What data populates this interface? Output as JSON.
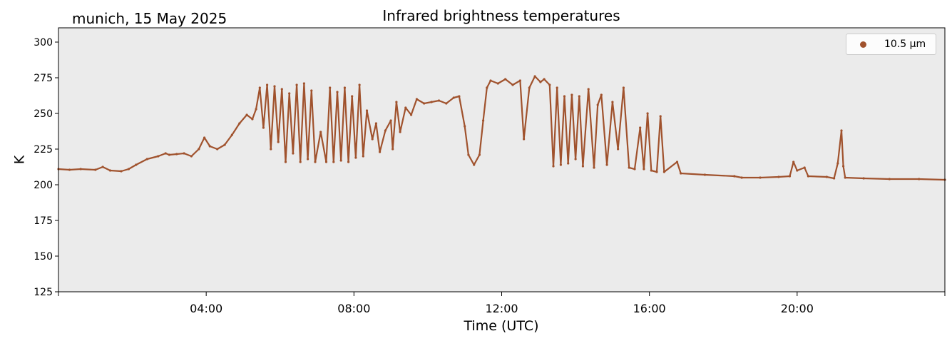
{
  "header": {
    "location_date": "munich, 15 May 2025"
  },
  "colors": {
    "series": "#a0522d",
    "plot_background": "#ebebeb"
  },
  "chart_data": {
    "type": "scatter",
    "title": "Infrared brightness temperatures",
    "xlabel": "Time (UTC)",
    "ylabel": "K",
    "xlim": [
      0,
      24
    ],
    "ylim": [
      125,
      310
    ],
    "x_ticks": [
      4,
      8,
      12,
      16,
      20
    ],
    "x_tick_labels": [
      "04:00",
      "08:00",
      "12:00",
      "16:00",
      "20:00"
    ],
    "y_ticks": [
      125,
      150,
      175,
      200,
      225,
      250,
      275,
      300
    ],
    "grid": false,
    "legend_position": "top-right",
    "series": [
      {
        "name": "10.5 µm",
        "marker": "dot",
        "points": [
          [
            0.0,
            211
          ],
          [
            0.3,
            210.5
          ],
          [
            0.6,
            211
          ],
          [
            1.0,
            210.5
          ],
          [
            1.2,
            212.5
          ],
          [
            1.4,
            210
          ],
          [
            1.7,
            209.5
          ],
          [
            1.9,
            211
          ],
          [
            2.1,
            214
          ],
          [
            2.4,
            218
          ],
          [
            2.7,
            220
          ],
          [
            2.9,
            222
          ],
          [
            3.0,
            221
          ],
          [
            3.2,
            221.5
          ],
          [
            3.4,
            222
          ],
          [
            3.6,
            220
          ],
          [
            3.8,
            225
          ],
          [
            3.95,
            233
          ],
          [
            4.1,
            227
          ],
          [
            4.3,
            225
          ],
          [
            4.5,
            228
          ],
          [
            4.7,
            235
          ],
          [
            4.9,
            243
          ],
          [
            5.1,
            249
          ],
          [
            5.25,
            246
          ],
          [
            5.35,
            253
          ],
          [
            5.45,
            268
          ],
          [
            5.55,
            240
          ],
          [
            5.65,
            270
          ],
          [
            5.75,
            225
          ],
          [
            5.85,
            269
          ],
          [
            5.95,
            230
          ],
          [
            6.05,
            267
          ],
          [
            6.15,
            216
          ],
          [
            6.25,
            264
          ],
          [
            6.35,
            222
          ],
          [
            6.45,
            270
          ],
          [
            6.55,
            216
          ],
          [
            6.65,
            271
          ],
          [
            6.75,
            218
          ],
          [
            6.85,
            266
          ],
          [
            6.95,
            216
          ],
          [
            7.1,
            237
          ],
          [
            7.25,
            216
          ],
          [
            7.35,
            268
          ],
          [
            7.45,
            216
          ],
          [
            7.55,
            265
          ],
          [
            7.65,
            217
          ],
          [
            7.75,
            268
          ],
          [
            7.85,
            216
          ],
          [
            7.95,
            262
          ],
          [
            8.05,
            219
          ],
          [
            8.15,
            270
          ],
          [
            8.25,
            220
          ],
          [
            8.35,
            252
          ],
          [
            8.5,
            232
          ],
          [
            8.6,
            243
          ],
          [
            8.7,
            223
          ],
          [
            8.85,
            238
          ],
          [
            9.0,
            245
          ],
          [
            9.05,
            225
          ],
          [
            9.15,
            258
          ],
          [
            9.25,
            237
          ],
          [
            9.4,
            254
          ],
          [
            9.55,
            249
          ],
          [
            9.7,
            260
          ],
          [
            9.9,
            257
          ],
          [
            10.1,
            258
          ],
          [
            10.3,
            259
          ],
          [
            10.5,
            257
          ],
          [
            10.7,
            261
          ],
          [
            10.85,
            262
          ],
          [
            11.0,
            241
          ],
          [
            11.1,
            221
          ],
          [
            11.25,
            214
          ],
          [
            11.4,
            221
          ],
          [
            11.5,
            245
          ],
          [
            11.6,
            268
          ],
          [
            11.7,
            273
          ],
          [
            11.9,
            271
          ],
          [
            12.1,
            274
          ],
          [
            12.3,
            270
          ],
          [
            12.5,
            273
          ],
          [
            12.6,
            232
          ],
          [
            12.75,
            268
          ],
          [
            12.9,
            276
          ],
          [
            13.05,
            272
          ],
          [
            13.15,
            274
          ],
          [
            13.3,
            270
          ],
          [
            13.4,
            213
          ],
          [
            13.5,
            268
          ],
          [
            13.6,
            214
          ],
          [
            13.7,
            262
          ],
          [
            13.8,
            215
          ],
          [
            13.9,
            263
          ],
          [
            14.0,
            218
          ],
          [
            14.1,
            262
          ],
          [
            14.2,
            213
          ],
          [
            14.35,
            267
          ],
          [
            14.5,
            212
          ],
          [
            14.6,
            256
          ],
          [
            14.7,
            263
          ],
          [
            14.85,
            214
          ],
          [
            15.0,
            258
          ],
          [
            15.15,
            225
          ],
          [
            15.3,
            268
          ],
          [
            15.45,
            212
          ],
          [
            15.6,
            211
          ],
          [
            15.75,
            240
          ],
          [
            15.85,
            211
          ],
          [
            15.95,
            250
          ],
          [
            16.05,
            210
          ],
          [
            16.2,
            209
          ],
          [
            16.3,
            248
          ],
          [
            16.4,
            209
          ],
          [
            16.75,
            216
          ],
          [
            16.85,
            208
          ],
          [
            17.5,
            207
          ],
          [
            18.3,
            206
          ],
          [
            18.5,
            205
          ],
          [
            19.0,
            205
          ],
          [
            19.5,
            205.5
          ],
          [
            19.8,
            206
          ],
          [
            19.9,
            216
          ],
          [
            20.0,
            210
          ],
          [
            20.2,
            212
          ],
          [
            20.3,
            206
          ],
          [
            20.8,
            205.5
          ],
          [
            21.0,
            204.5
          ],
          [
            21.1,
            215
          ],
          [
            21.2,
            238
          ],
          [
            21.25,
            213
          ],
          [
            21.3,
            205
          ],
          [
            21.8,
            204.5
          ],
          [
            22.5,
            204
          ],
          [
            23.3,
            204
          ],
          [
            24.0,
            203.5
          ]
        ]
      }
    ]
  }
}
